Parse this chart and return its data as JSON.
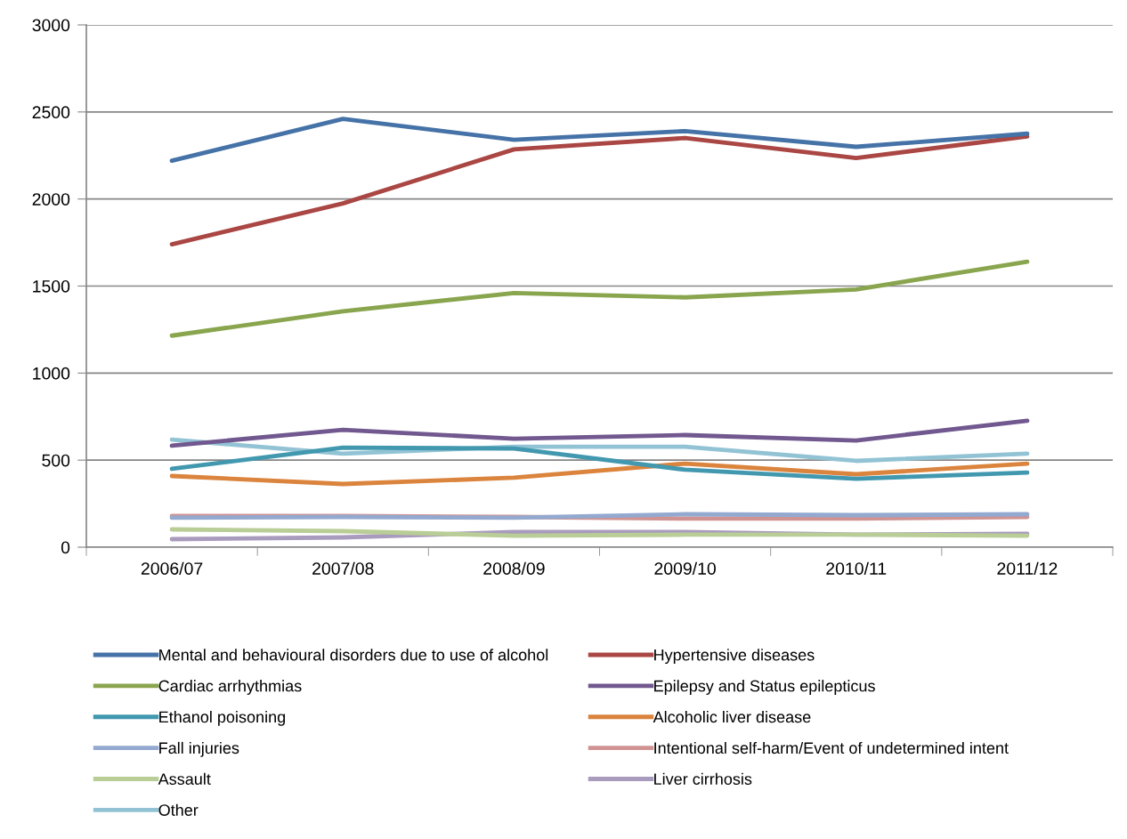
{
  "chart_data": {
    "type": "line",
    "categories": [
      "2006/07",
      "2007/08",
      "2008/09",
      "2009/10",
      "2010/11",
      "2011/12"
    ],
    "ylim": [
      0,
      3000
    ],
    "yticks": [
      0,
      500,
      1000,
      1500,
      2000,
      2500,
      3000
    ],
    "grid": "y",
    "legend": "bottom",
    "marker": "none",
    "line_style": "solid",
    "series": [
      {
        "name": "Mental and behavioural disorders due to use of alcohol",
        "color": "#4572a7",
        "values": [
          2220,
          2460,
          2340,
          2390,
          2300,
          2375
        ]
      },
      {
        "name": "Hypertensive diseases",
        "color": "#aa4643",
        "values": [
          1740,
          1975,
          2285,
          2350,
          2235,
          2360
        ]
      },
      {
        "name": "Cardiac arrhythmias",
        "color": "#89a54e",
        "values": [
          1215,
          1355,
          1460,
          1435,
          1480,
          1640
        ]
      },
      {
        "name": "Epilepsy and Status epilepticus",
        "color": "#71588f",
        "values": [
          583,
          674,
          623,
          644,
          613,
          726
        ]
      },
      {
        "name": "Ethanol poisoning",
        "color": "#4198af",
        "values": [
          450,
          572,
          567,
          445,
          393,
          429
        ]
      },
      {
        "name": "Alcoholic liver disease",
        "color": "#db843d",
        "values": [
          409,
          363,
          399,
          480,
          419,
          480
        ]
      },
      {
        "name": "Fall injuries",
        "color": "#93a9cf",
        "values": [
          169,
          174,
          169,
          189,
          184,
          189
        ]
      },
      {
        "name": "Intentional self-harm/Event of undetermined intent",
        "color": "#d19392",
        "values": [
          179,
          179,
          174,
          164,
          164,
          174
        ]
      },
      {
        "name": "Assault",
        "color": "#b9cd96",
        "values": [
          102,
          92,
          66,
          72,
          72,
          66
        ]
      },
      {
        "name": "Liver cirrhosis",
        "color": "#a99bbd",
        "values": [
          46,
          56,
          87,
          87,
          72,
          77
        ]
      },
      {
        "name": "Other",
        "color": "#92c3d4",
        "values": [
          618,
          537,
          577,
          577,
          496,
          537
        ]
      }
    ]
  }
}
